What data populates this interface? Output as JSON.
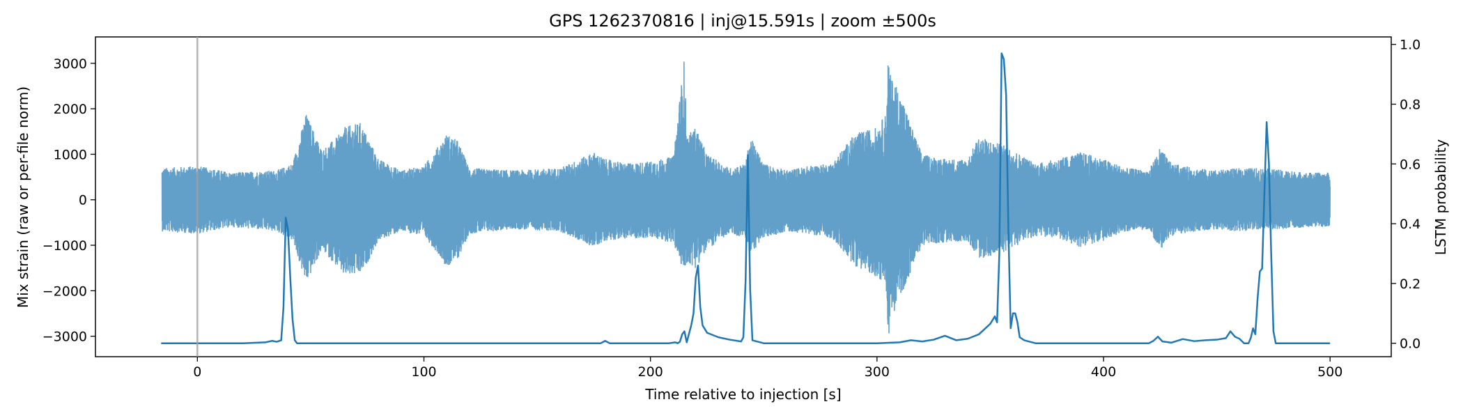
{
  "chart_data": {
    "type": "line",
    "title": "GPS 1262370816 | inj@15.591s | zoom ±500s",
    "xlabel": "Time relative to injection [s]",
    "ylabel_left": "Mix strain (raw or per-file norm)",
    "ylabel_right": "LSTM probability",
    "xlim": [
      -45,
      527
    ],
    "ylim_left": [
      -3450,
      3580
    ],
    "ylim_right": [
      -0.045,
      1.025
    ],
    "x_ticks": [
      0,
      100,
      200,
      300,
      400,
      500
    ],
    "x_tick_labels": [
      "0",
      "100",
      "200",
      "300",
      "400",
      "500"
    ],
    "y_left_ticks": [
      3000,
      2000,
      1000,
      0,
      -1000,
      -2000,
      -3000
    ],
    "y_left_tick_labels": [
      "3000",
      "2000",
      "1000",
      "0",
      "−1000",
      "−2000",
      "−3000"
    ],
    "y_right_ticks": [
      1.0,
      0.8,
      0.6,
      0.4,
      0.2,
      0.0
    ],
    "y_right_tick_labels": [
      "1.0",
      "0.8",
      "0.6",
      "0.4",
      "0.2",
      "0.0"
    ],
    "grid": false,
    "vline_x": 0,
    "colors": {
      "strain": "#1f77b4",
      "probability": "#1f77b4",
      "vline": "#a0a0a0"
    },
    "series": [
      {
        "axis": "left",
        "x_range": [
          -15.6,
          500
        ],
        "envelope_x": [
          -15,
          0,
          15,
          35,
          42,
          48,
          55,
          62,
          65,
          72,
          75,
          80,
          90,
          100,
          108,
          110,
          115,
          120,
          140,
          160,
          175,
          180,
          190,
          200,
          210,
          215,
          216,
          220,
          225,
          235,
          242,
          244,
          250,
          260,
          270,
          280,
          290,
          300,
          304,
          305,
          306,
          308,
          312,
          316,
          320,
          330,
          340,
          345,
          350,
          356,
          360,
          370,
          380,
          390,
          400,
          410,
          420,
          425,
          430,
          440,
          450,
          460,
          470,
          480,
          490,
          500
        ],
        "envelope_upper": [
          700,
          750,
          600,
          650,
          800,
          1900,
          1100,
          1400,
          1600,
          1700,
          1400,
          900,
          650,
          750,
          1300,
          1450,
          1300,
          700,
          650,
          700,
          1050,
          900,
          800,
          850,
          950,
          3150,
          1400,
          1600,
          1000,
          700,
          800,
          1400,
          800,
          650,
          750,
          800,
          1450,
          1600,
          1900,
          3250,
          2700,
          2600,
          2100,
          1500,
          1000,
          900,
          900,
          1400,
          1300,
          1200,
          1100,
          800,
          900,
          1050,
          900,
          700,
          650,
          1150,
          800,
          700,
          650,
          700,
          700,
          650,
          600,
          600
        ],
        "envelope_lower": [
          -700,
          -750,
          -600,
          -700,
          -900,
          -1850,
          -1100,
          -1500,
          -1700,
          -1650,
          -1400,
          -900,
          -700,
          -800,
          -1300,
          -1500,
          -1300,
          -750,
          -650,
          -700,
          -1050,
          -900,
          -850,
          -850,
          -950,
          -1650,
          -1400,
          -1500,
          -1100,
          -750,
          -850,
          -1200,
          -850,
          -700,
          -750,
          -850,
          -1450,
          -1700,
          -1900,
          -3050,
          -2700,
          -2400,
          -1950,
          -1450,
          -1000,
          -950,
          -900,
          -1300,
          -1250,
          -1150,
          -1050,
          -800,
          -850,
          -1050,
          -900,
          -700,
          -650,
          -1100,
          -800,
          -700,
          -650,
          -700,
          -650,
          -650,
          -600,
          -600
        ]
      },
      {
        "axis": "right",
        "x": [
          -16,
          20,
          30,
          33,
          35,
          37,
          38,
          39,
          40,
          41,
          42,
          43,
          44,
          60,
          100,
          150,
          178,
          180,
          182,
          200,
          208,
          211,
          212,
          213,
          214,
          215,
          216,
          218,
          219,
          220,
          221,
          222,
          223,
          225,
          230,
          235,
          240,
          241,
          242,
          243,
          244,
          245,
          250,
          280,
          300,
          310,
          315,
          320,
          325,
          330,
          335,
          340,
          345,
          350,
          352,
          353,
          354,
          355,
          356,
          357,
          358,
          359,
          360,
          361,
          362,
          363,
          365,
          370,
          380,
          400,
          420,
          422,
          424,
          426,
          430,
          435,
          440,
          445,
          450,
          454,
          456,
          458,
          460,
          462,
          464,
          465,
          466,
          467,
          468,
          469,
          470,
          471,
          472,
          473,
          474,
          475,
          476,
          480,
          500
        ],
        "y": [
          0.0,
          0.0,
          0.003,
          0.008,
          0.005,
          0.01,
          0.12,
          0.42,
          0.38,
          0.22,
          0.08,
          0.01,
          0.0,
          0.0,
          0.0,
          0.0,
          0.0,
          0.008,
          0.0,
          0.0,
          0.0,
          0.003,
          0.0,
          0.005,
          0.03,
          0.04,
          0.003,
          0.06,
          0.1,
          0.22,
          0.26,
          0.12,
          0.06,
          0.035,
          0.02,
          0.012,
          0.006,
          0.02,
          0.21,
          0.63,
          0.18,
          0.01,
          0.0,
          0.0,
          0.0,
          0.003,
          0.01,
          0.006,
          0.012,
          0.025,
          0.01,
          0.015,
          0.03,
          0.065,
          0.09,
          0.07,
          0.3,
          0.97,
          0.95,
          0.83,
          0.38,
          0.05,
          0.1,
          0.1,
          0.07,
          0.02,
          0.01,
          0.0,
          0.0,
          0.0,
          0.0,
          0.008,
          0.022,
          0.006,
          0.002,
          0.014,
          0.007,
          0.01,
          0.012,
          0.017,
          0.04,
          0.022,
          0.015,
          0.0,
          0.0,
          0.018,
          0.05,
          0.03,
          0.15,
          0.24,
          0.25,
          0.5,
          0.74,
          0.6,
          0.3,
          0.04,
          0.0,
          0.0,
          0.0
        ]
      }
    ]
  }
}
